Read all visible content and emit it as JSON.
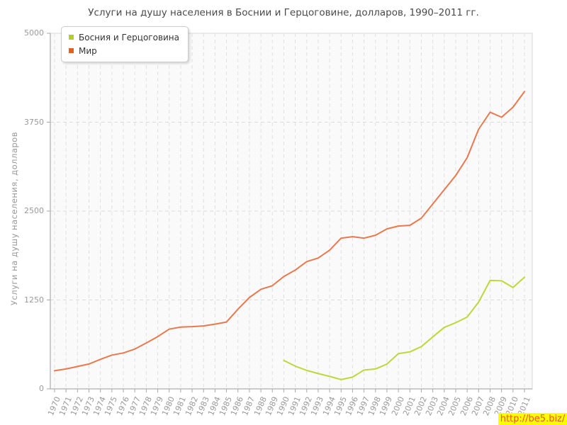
{
  "title": "Услуги на душу населения в Боснии и Герцоговине, долларов, 1990–2011 гг.",
  "watermark": {
    "text": "http://be5.biz/",
    "bg": "#ffff00",
    "color": "#f4511e"
  },
  "legend": {
    "items": [
      {
        "label": "Босния и Герцоговина",
        "color": "#b2d01c"
      },
      {
        "label": "Мир",
        "color": "#e0602a"
      }
    ]
  },
  "chart_data": {
    "type": "line",
    "title": "Услуги на душу населения в Боснии и Герцоговине, долларов, 1990–2011 гг.",
    "xlabel": "",
    "ylabel": "Услуги на душу населения, долларов",
    "ylim": [
      0,
      5000
    ],
    "yticks": [
      0,
      1250,
      2500,
      3750,
      5000
    ],
    "grid": true,
    "legend_position": "top-left",
    "x": [
      1970,
      1971,
      1972,
      1973,
      1974,
      1975,
      1976,
      1977,
      1978,
      1979,
      1980,
      1981,
      1982,
      1983,
      1984,
      1985,
      1986,
      1987,
      1988,
      1989,
      1990,
      1991,
      1992,
      1993,
      1994,
      1995,
      1996,
      1997,
      1998,
      1999,
      2000,
      2001,
      2002,
      2003,
      2004,
      2005,
      2006,
      2007,
      2008,
      2009,
      2010,
      2011
    ],
    "series": [
      {
        "name": "Босния и Герцоговина",
        "color": "#bdd83e",
        "values": [
          null,
          null,
          null,
          null,
          null,
          null,
          null,
          null,
          null,
          null,
          null,
          null,
          null,
          null,
          null,
          null,
          null,
          null,
          null,
          null,
          400,
          320,
          260,
          215,
          175,
          130,
          165,
          265,
          280,
          350,
          495,
          520,
          595,
          730,
          865,
          930,
          1010,
          1220,
          1525,
          1520,
          1425,
          1570
        ]
      },
      {
        "name": "Мир",
        "color": "#e8794f",
        "values": [
          255,
          280,
          315,
          350,
          415,
          475,
          505,
          560,
          645,
          735,
          840,
          870,
          875,
          885,
          910,
          940,
          1120,
          1285,
          1400,
          1450,
          1580,
          1670,
          1790,
          1840,
          1950,
          2120,
          2140,
          2120,
          2160,
          2250,
          2290,
          2300,
          2400,
          2600,
          2800,
          3000,
          3250,
          3650,
          3890,
          3820,
          3960,
          4180
        ]
      }
    ]
  }
}
